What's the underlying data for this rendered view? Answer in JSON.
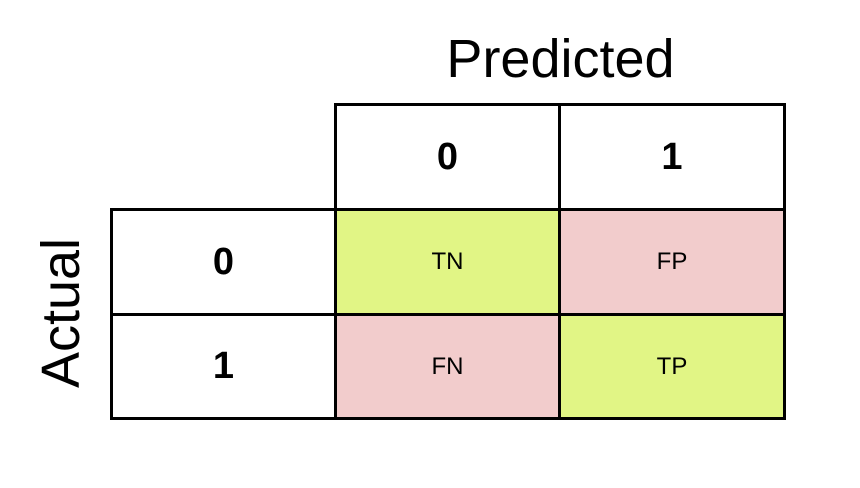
{
  "titles": {
    "predicted": "Predicted",
    "actual": "Actual"
  },
  "predicted_headers": [
    "0",
    "1"
  ],
  "actual_headers": [
    "0",
    "1"
  ],
  "matrix": [
    [
      {
        "label": "TN",
        "color": "#e1f585"
      },
      {
        "label": "FP",
        "color": "#f2cccc"
      }
    ],
    [
      {
        "label": "FN",
        "color": "#f2cccc"
      },
      {
        "label": "TP",
        "color": "#e1f585"
      }
    ]
  ]
}
